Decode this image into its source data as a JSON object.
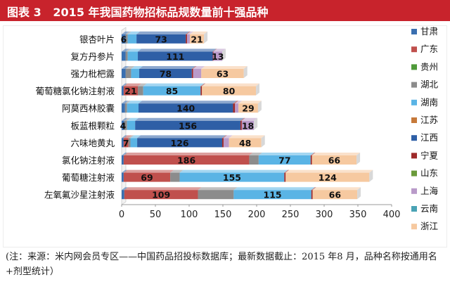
{
  "figure_title": "图表 3   2015 年我国药物招标品规数量前十强品种",
  "footnote": "(注：来源：米内网会员专区——中国药品招投标数据库；最新数据截止：2015 年8 月，品种名称按通用名+剂型统计）",
  "chart_data": {
    "type": "bar",
    "orientation": "horizontal",
    "stacked": true,
    "categories": [
      "银杏叶片",
      "复方丹参片",
      "强力枇杷露",
      "葡萄糖氯化钠注射液",
      "阿莫西林胶囊",
      "板蓝根颗粒",
      "六味地黄丸",
      "氯化钠注射液",
      "葡萄糖注射液",
      "左氧氟沙星注射液"
    ],
    "xlim": [
      0,
      400
    ],
    "xticks": [
      0,
      50,
      100,
      150,
      200,
      250,
      300,
      350,
      400
    ],
    "grid": false,
    "legend_position": "right",
    "series": [
      {
        "name": "甘肃",
        "color": "#3a6fb0",
        "values": [
          6,
          6,
          6,
          3,
          5,
          4,
          3,
          3,
          3,
          4
        ]
      },
      {
        "name": "广东",
        "color": "#c0504d",
        "values": [
          0,
          0,
          0,
          21,
          0,
          0,
          7,
          186,
          69,
          109
        ]
      },
      {
        "name": "贵州",
        "color": "#4f9a3a",
        "values": [
          0,
          0,
          0,
          0,
          0,
          0,
          0,
          0,
          0,
          0
        ]
      },
      {
        "name": "湖北",
        "color": "#8c8c8c",
        "values": [
          3,
          3,
          8,
          8,
          3,
          4,
          3,
          14,
          14,
          53
        ]
      },
      {
        "name": "湖南",
        "color": "#5ab4e5",
        "values": [
          13,
          15,
          12,
          85,
          17,
          12,
          10,
          77,
          155,
          115
        ]
      },
      {
        "name": "江苏",
        "color": "#c6793a",
        "values": [
          0,
          0,
          0,
          0,
          0,
          0,
          0,
          0,
          0,
          0
        ]
      },
      {
        "name": "江西",
        "color": "#2e5fa6",
        "values": [
          73,
          111,
          78,
          0,
          140,
          156,
          126,
          0,
          0,
          0
        ]
      },
      {
        "name": "宁夏",
        "color": "#9e2a2a",
        "values": [
          2,
          1,
          2,
          2,
          3,
          2,
          2,
          2,
          2,
          2
        ]
      },
      {
        "name": "山东",
        "color": "#6a9a3a",
        "values": [
          0,
          0,
          0,
          0,
          0,
          0,
          0,
          0,
          0,
          0
        ]
      },
      {
        "name": "上海",
        "color": "#b99ac9",
        "values": [
          4,
          13,
          12,
          0,
          5,
          18,
          8,
          0,
          0,
          0
        ]
      },
      {
        "name": "云南",
        "color": "#4aa3b5",
        "values": [
          0,
          0,
          0,
          0,
          0,
          0,
          0,
          0,
          0,
          0
        ]
      },
      {
        "name": "浙江",
        "color": "#f6c9a0",
        "values": [
          21,
          0,
          63,
          80,
          29,
          0,
          48,
          66,
          124,
          66
        ]
      }
    ],
    "data_labels": [
      [
        {
          "series": "甘肃",
          "value": 6
        },
        {
          "series": "江西",
          "value": 73
        },
        {
          "series": "浙江",
          "value": 21
        }
      ],
      [
        {
          "series": "江西",
          "value": 111
        },
        {
          "series": "上海",
          "value": 13
        }
      ],
      [
        {
          "series": "江西",
          "value": 78
        },
        {
          "series": "浙江",
          "value": 63
        }
      ],
      [
        {
          "series": "广东",
          "value": 21
        },
        {
          "series": "湖南",
          "value": 85
        },
        {
          "series": "浙江",
          "value": 80
        }
      ],
      [
        {
          "series": "江西",
          "value": 140
        },
        {
          "series": "浙江",
          "value": 29
        }
      ],
      [
        {
          "series": "甘肃",
          "value": 4
        },
        {
          "series": "江西",
          "value": 156
        },
        {
          "series": "上海",
          "value": 18
        }
      ],
      [
        {
          "series": "广东",
          "value": 7
        },
        {
          "series": "江西",
          "value": 126
        },
        {
          "series": "浙江",
          "value": 48
        }
      ],
      [
        {
          "series": "广东",
          "value": 186
        },
        {
          "series": "湖南",
          "value": 77
        },
        {
          "series": "浙江",
          "value": 66
        }
      ],
      [
        {
          "series": "广东",
          "value": 69
        },
        {
          "series": "湖南",
          "value": 155
        },
        {
          "series": "浙江",
          "value": 124
        }
      ],
      [
        {
          "series": "广东",
          "value": 109
        },
        {
          "series": "湖南",
          "value": 115
        },
        {
          "series": "浙江",
          "value": 66
        }
      ]
    ]
  }
}
